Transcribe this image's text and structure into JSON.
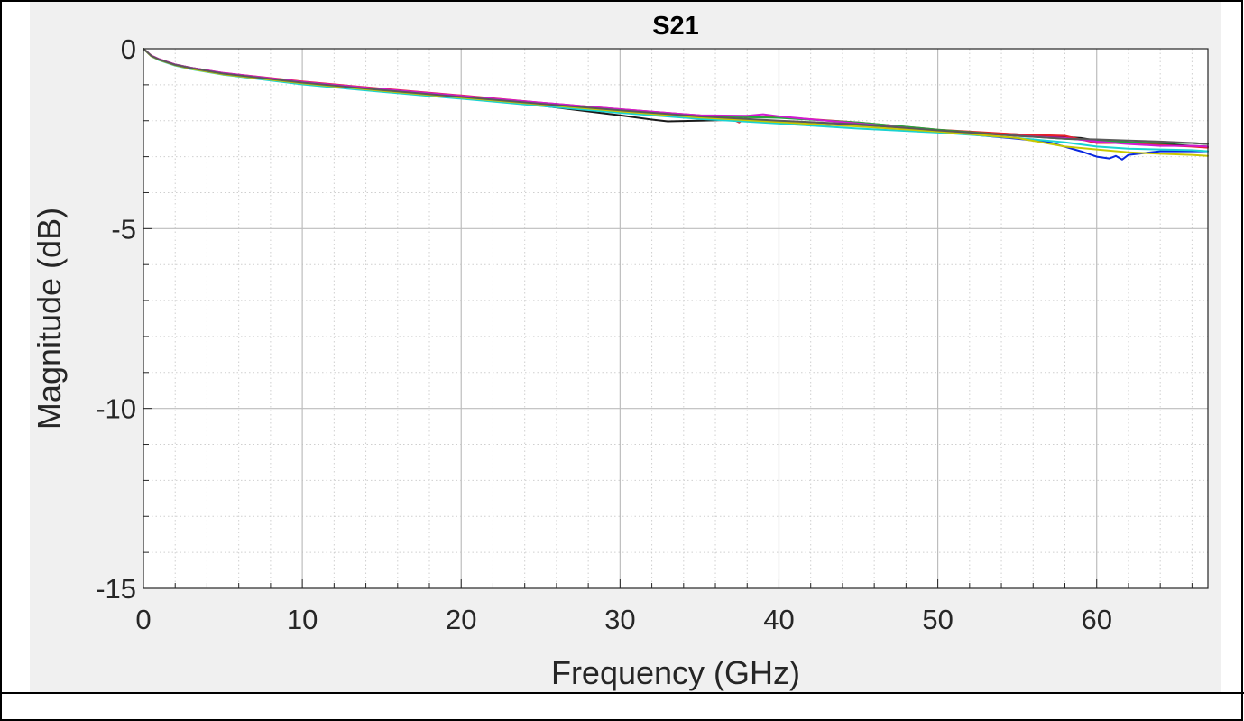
{
  "chart_data": {
    "type": "line",
    "title": "S21",
    "xlabel": "Frequency (GHz)",
    "ylabel": "Magnitude (dB)",
    "xlim": [
      0,
      67
    ],
    "ylim": [
      -15,
      0
    ],
    "xticks": [
      0,
      10,
      20,
      30,
      40,
      50,
      60
    ],
    "xtick_labels": [
      "0",
      "10",
      "20",
      "30",
      "40",
      "50",
      "60"
    ],
    "yticks": [
      0,
      -5,
      -10,
      -15
    ],
    "ytick_labels": [
      "0",
      "-5",
      "-10",
      "-15"
    ],
    "grid": "major and minor",
    "legend": "none",
    "series": [
      {
        "color": "#1a1a1a",
        "x": [
          0,
          0.5,
          1,
          2,
          3,
          5,
          10,
          15,
          20,
          25,
          30,
          32,
          33,
          35,
          37,
          38,
          40,
          42,
          45,
          48,
          50,
          52,
          55,
          57,
          59,
          60,
          62,
          64,
          66,
          67
        ],
        "y": [
          0,
          -0.2,
          -0.3,
          -0.45,
          -0.55,
          -0.7,
          -0.97,
          -1.18,
          -1.38,
          -1.58,
          -1.85,
          -1.97,
          -2.02,
          -2.0,
          -1.98,
          -2.0,
          -2.05,
          -2.1,
          -2.14,
          -2.2,
          -2.27,
          -2.33,
          -2.38,
          -2.42,
          -2.48,
          -2.55,
          -2.6,
          -2.65,
          -2.7,
          -2.72
        ]
      },
      {
        "color": "#e8202a",
        "x": [
          0,
          0.5,
          1,
          2,
          3,
          5,
          10,
          15,
          20,
          25,
          30,
          35,
          37,
          37.5,
          38,
          40,
          45,
          50,
          55,
          58,
          60,
          62,
          64,
          66,
          67
        ],
        "y": [
          0,
          -0.19,
          -0.29,
          -0.44,
          -0.53,
          -0.67,
          -0.91,
          -1.11,
          -1.3,
          -1.5,
          -1.68,
          -1.85,
          -1.95,
          -2.05,
          -1.9,
          -1.9,
          -2.05,
          -2.25,
          -2.38,
          -2.42,
          -2.62,
          -2.62,
          -2.68,
          -2.72,
          -2.75
        ]
      },
      {
        "color": "#0a28e0",
        "x": [
          0,
          0.5,
          1,
          2,
          3,
          5,
          10,
          15,
          20,
          25,
          30,
          35,
          40,
          45,
          50,
          55,
          57,
          59,
          60,
          60.8,
          61.2,
          61.6,
          62,
          63,
          64,
          66,
          67
        ],
        "y": [
          0,
          -0.2,
          -0.3,
          -0.45,
          -0.54,
          -0.69,
          -0.95,
          -1.16,
          -1.36,
          -1.55,
          -1.73,
          -1.9,
          -2.02,
          -2.12,
          -2.3,
          -2.5,
          -2.6,
          -2.85,
          -3.0,
          -3.05,
          -2.98,
          -3.08,
          -2.95,
          -2.9,
          -2.85,
          -2.85,
          -2.85
        ]
      },
      {
        "color": "#1faa3a",
        "x": [
          0,
          0.5,
          1,
          2,
          3,
          5,
          10,
          15,
          20,
          25,
          30,
          35,
          38,
          40,
          45,
          50,
          55,
          58,
          60,
          62,
          64,
          66,
          67
        ],
        "y": [
          0,
          -0.2,
          -0.3,
          -0.44,
          -0.53,
          -0.68,
          -0.93,
          -1.14,
          -1.33,
          -1.52,
          -1.7,
          -1.86,
          -1.9,
          -1.92,
          -2.05,
          -2.25,
          -2.42,
          -2.5,
          -2.55,
          -2.6,
          -2.62,
          -2.62,
          -2.65
        ]
      },
      {
        "color": "#d21ad2",
        "x": [
          0,
          0.5,
          1,
          2,
          3,
          5,
          10,
          15,
          20,
          25,
          30,
          35,
          38,
          39,
          40,
          45,
          50,
          55,
          58,
          60,
          62,
          64,
          66,
          67
        ],
        "y": [
          0,
          -0.19,
          -0.29,
          -0.44,
          -0.53,
          -0.67,
          -0.92,
          -1.12,
          -1.31,
          -1.5,
          -1.68,
          -1.85,
          -1.86,
          -1.82,
          -1.88,
          -2.08,
          -2.28,
          -2.42,
          -2.48,
          -2.58,
          -2.65,
          -2.7,
          -2.7,
          -2.72
        ]
      },
      {
        "color": "#1ad2d2",
        "x": [
          0,
          0.5,
          1,
          2,
          3,
          5,
          10,
          15,
          20,
          25,
          30,
          35,
          40,
          45,
          50,
          55,
          58,
          60,
          62,
          64,
          66,
          67
        ],
        "y": [
          0,
          -0.21,
          -0.32,
          -0.47,
          -0.57,
          -0.72,
          -0.99,
          -1.2,
          -1.39,
          -1.59,
          -1.78,
          -1.95,
          -2.08,
          -2.22,
          -2.33,
          -2.48,
          -2.6,
          -2.72,
          -2.78,
          -2.8,
          -2.82,
          -2.85
        ]
      },
      {
        "color": "#c8c800",
        "x": [
          0,
          0.5,
          1,
          2,
          3,
          5,
          10,
          15,
          20,
          25,
          30,
          35,
          40,
          45,
          50,
          55,
          58,
          60,
          62,
          64,
          66,
          67
        ],
        "y": [
          0,
          -0.21,
          -0.31,
          -0.46,
          -0.56,
          -0.71,
          -0.96,
          -1.17,
          -1.36,
          -1.55,
          -1.74,
          -1.91,
          -2.04,
          -2.16,
          -2.3,
          -2.48,
          -2.72,
          -2.8,
          -2.88,
          -2.92,
          -2.95,
          -2.98
        ]
      },
      {
        "color": "#5a5a5a",
        "x": [
          0,
          0.5,
          1,
          2,
          3,
          5,
          10,
          15,
          20,
          25,
          30,
          35,
          40,
          45,
          50,
          55,
          58,
          60,
          62,
          64,
          66,
          67
        ],
        "y": [
          0,
          -0.2,
          -0.3,
          -0.45,
          -0.54,
          -0.69,
          -0.94,
          -1.15,
          -1.34,
          -1.53,
          -1.71,
          -1.88,
          -2.0,
          -2.1,
          -2.27,
          -2.42,
          -2.5,
          -2.52,
          -2.55,
          -2.58,
          -2.62,
          -2.65
        ]
      }
    ]
  }
}
